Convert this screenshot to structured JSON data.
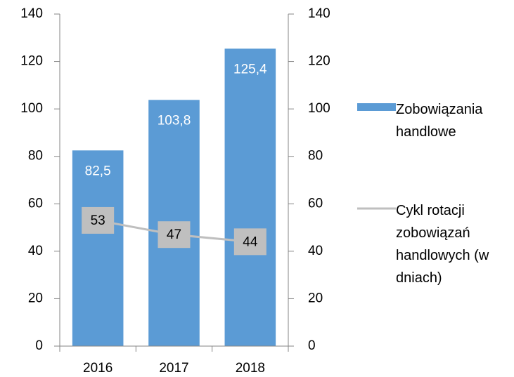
{
  "chart_data": {
    "type": "bar-line",
    "categories": [
      "2016",
      "2017",
      "2018"
    ],
    "series": [
      {
        "name": "Zobowiązania handlowe",
        "type": "bar",
        "color": "#5b9bd5",
        "values": [
          82.5,
          103.8,
          125.4
        ],
        "value_labels": [
          "82,5",
          "103,8",
          "125,4"
        ]
      },
      {
        "name": "Cykl rotacji zobowiązań handlowych (w dniach)",
        "type": "line",
        "axis": "y2",
        "color": "#bfbfbf",
        "values": [
          53,
          47,
          44
        ]
      }
    ],
    "ylim": [
      0,
      140
    ],
    "yticks": [
      0,
      20,
      40,
      60,
      80,
      100,
      120,
      140
    ],
    "y2lim": [
      0,
      140
    ],
    "y2ticks": [
      0,
      20,
      40,
      60,
      80,
      100,
      120,
      140
    ],
    "legend": "right"
  }
}
